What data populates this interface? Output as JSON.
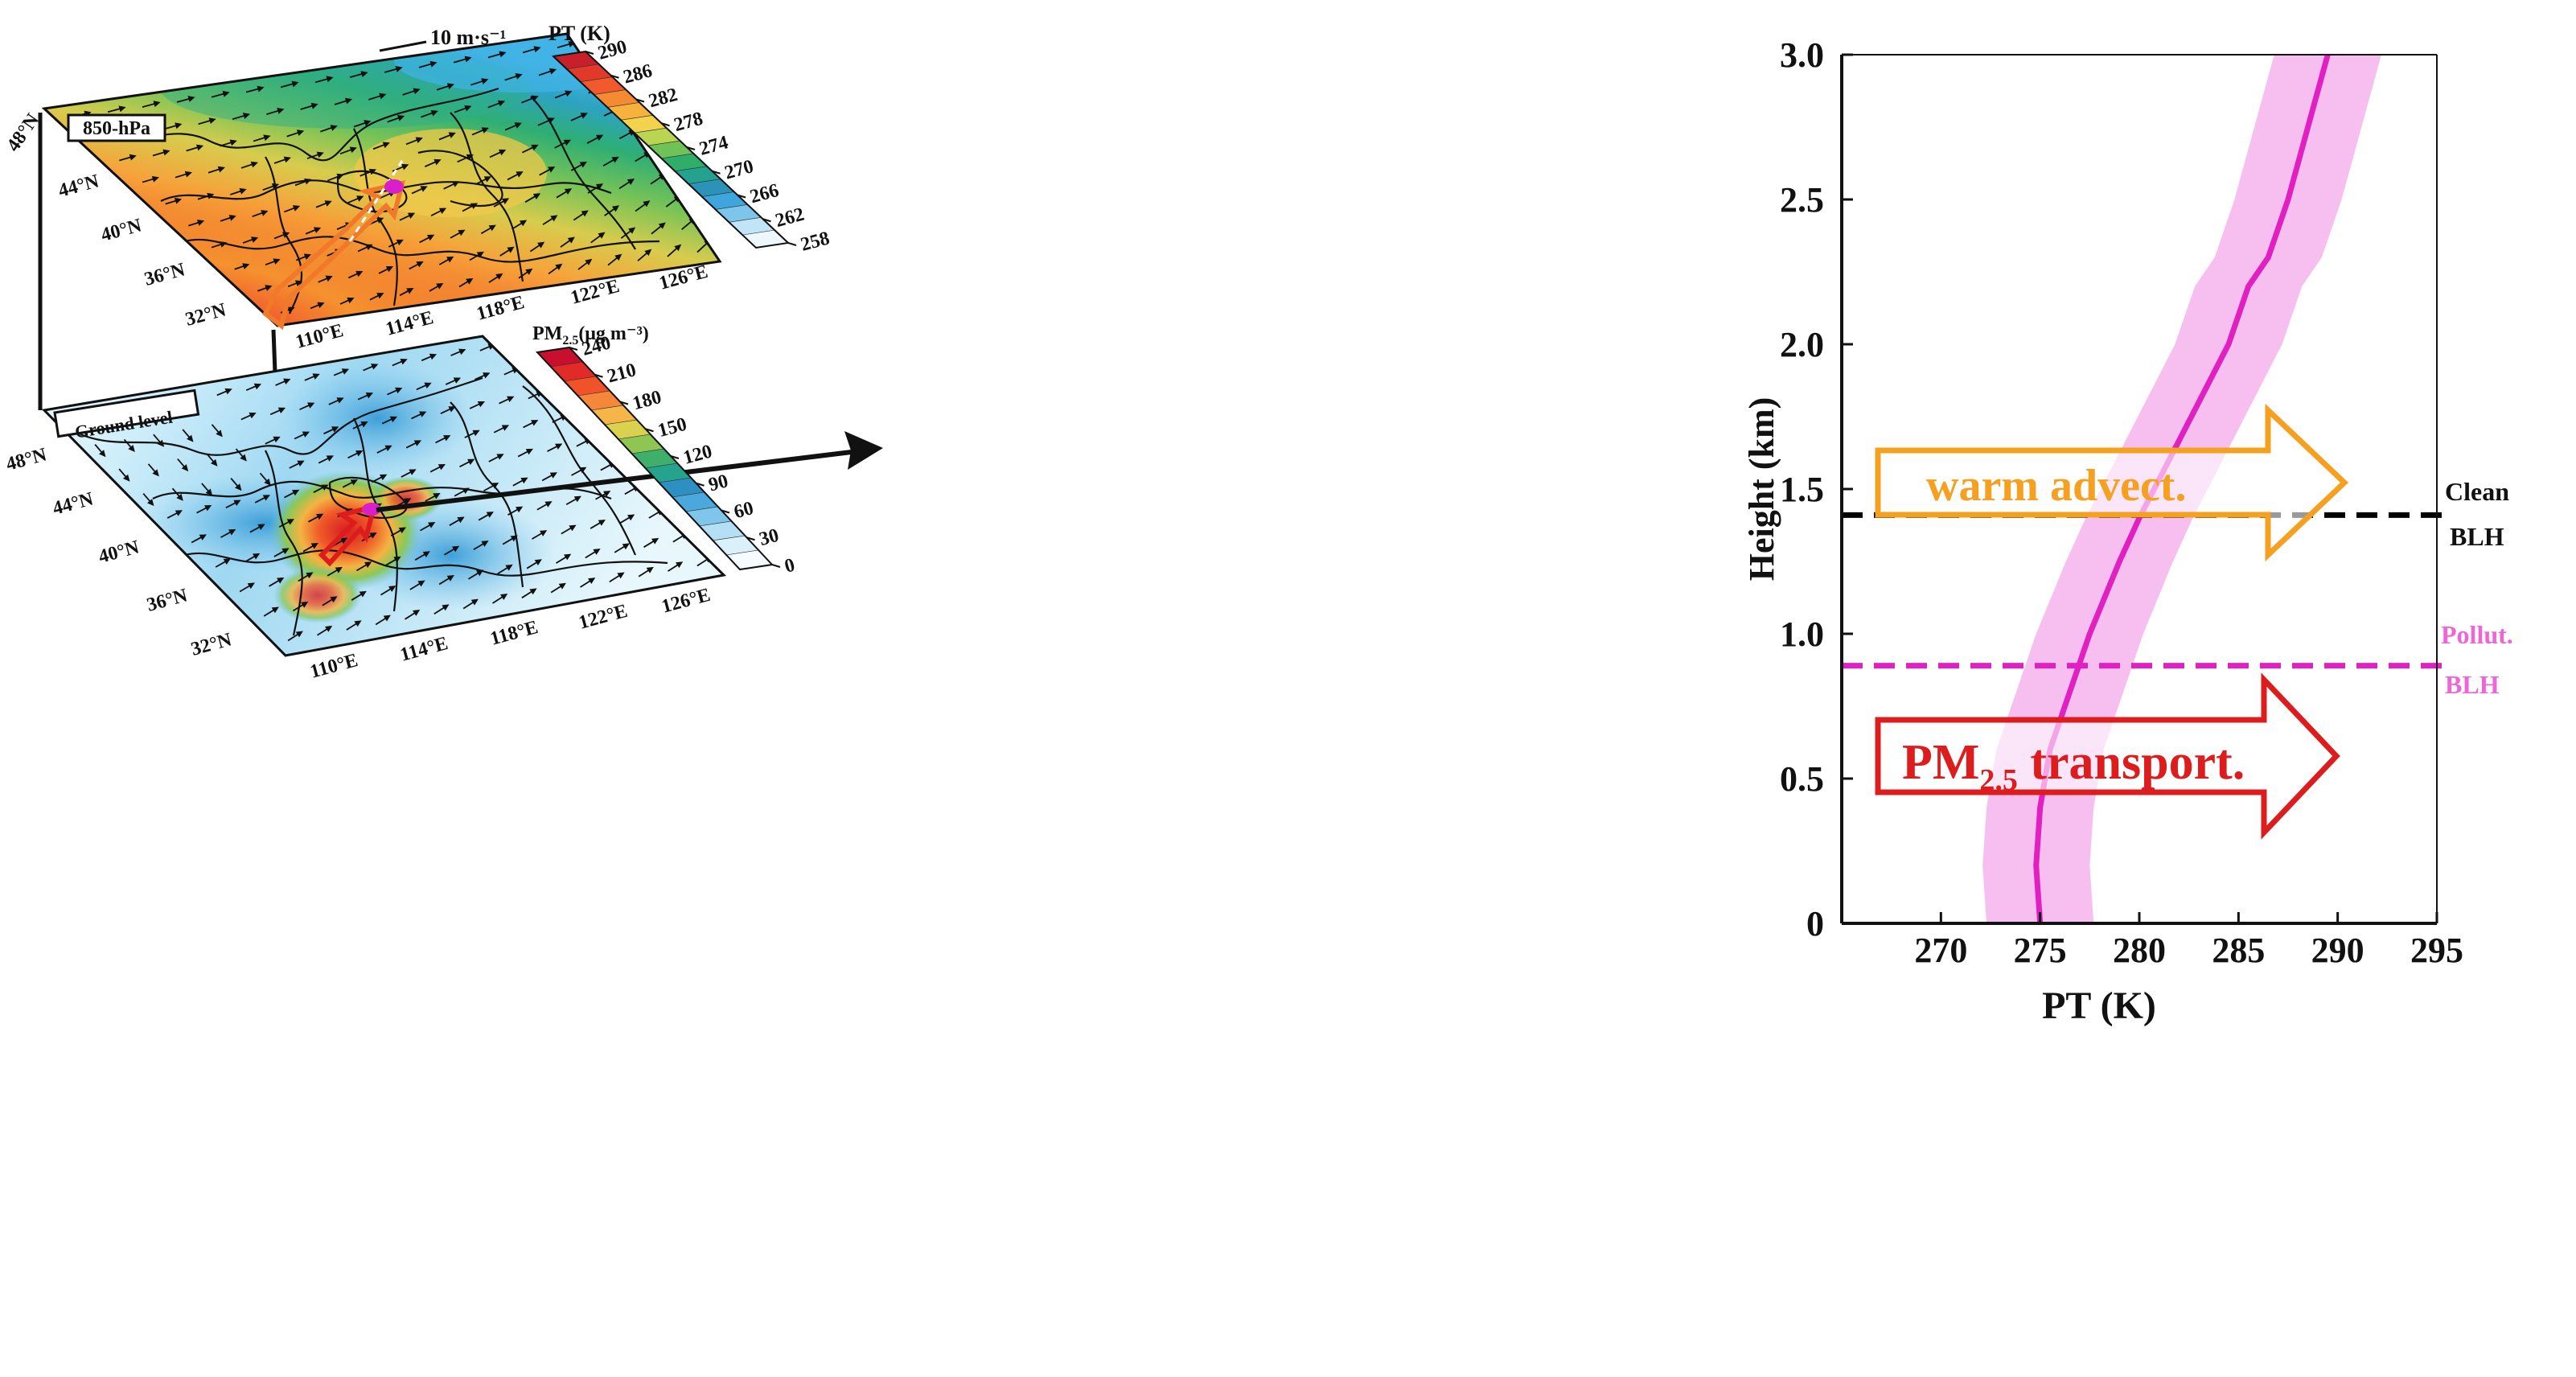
{
  "upper_map": {
    "level_label": "850-hPa",
    "lat_labels": [
      "48°N",
      "44°N",
      "40°N",
      "36°N",
      "32°N"
    ],
    "lon_labels": [
      "110°E",
      "114°E",
      "118°E",
      "122°E",
      "126°E"
    ],
    "wind_scale_label": "10 m·s⁻¹",
    "colorbar": {
      "title": "PT (K)",
      "ticks": [
        "290",
        "286",
        "282",
        "278",
        "274",
        "270",
        "266",
        "262",
        "258"
      ],
      "colors": [
        "#c8202a",
        "#e23a2a",
        "#f05a2c",
        "#f48a32",
        "#f7b23e",
        "#f3d24e",
        "#b9d551",
        "#6fc255",
        "#2fae6a",
        "#25a28f",
        "#2a93b7",
        "#3ea6dd",
        "#7cc6ec",
        "#bfe5f6",
        "#eef8fc"
      ]
    }
  },
  "lower_map": {
    "level_label": "Ground level",
    "lat_labels": [
      "48°N",
      "44°N",
      "40°N",
      "36°N",
      "32°N"
    ],
    "lon_labels": [
      "110°E",
      "114°E",
      "118°E",
      "122°E",
      "126°E"
    ],
    "colorbar": {
      "title_main": "PM",
      "title_sub": "2.5",
      "title_unit": "(μg m⁻³)",
      "ticks": [
        "240",
        "210",
        "180",
        "150",
        "120",
        "90",
        "60",
        "30",
        "0"
      ],
      "colors": [
        "#c8102e",
        "#e22a26",
        "#f0522a",
        "#f5873a",
        "#f5b548",
        "#d9d14f",
        "#8fc653",
        "#3faf6c",
        "#25a38f",
        "#2e90c2",
        "#4aa8dc",
        "#80c5ec",
        "#b5dff4",
        "#daf0fa",
        "#f5fbfe"
      ]
    }
  },
  "profile_chart": {
    "xlabel": "PT (K)",
    "ylabel": "Height (km)",
    "x_ticks": [
      270,
      275,
      280,
      285,
      290,
      295
    ],
    "y_ticks": [
      0,
      0.5,
      1.0,
      1.5,
      2.0,
      2.5,
      3.0
    ],
    "y_tick_labels": [
      "0",
      "0.5",
      "1.0",
      "1.5",
      "2.0",
      "2.5",
      "3.0"
    ],
    "clean_blh_line1": "Clean",
    "clean_blh_line2": "BLH",
    "pollut_blh_line1": "Pollut.",
    "pollut_blh_line2": "BLH",
    "warm_arrow_text": "warm advect.",
    "pm_arrow_main": "PM",
    "pm_arrow_sub": "2.5",
    "pm_arrow_tail": " transport."
  },
  "chart_data": {
    "type": "line",
    "xlabel": "PT (K)",
    "ylabel": "Height (km)",
    "xlim": [
      265,
      295
    ],
    "ylim": [
      0,
      3.0
    ],
    "series": [
      {
        "values_x": [
          275.0,
          274.8,
          275.0,
          275.5,
          276.5,
          277.5,
          279.0,
          280.0,
          281.5,
          283.0,
          284.5,
          285.5,
          286.5,
          287.5,
          288.5,
          289.5
        ],
        "values_y": [
          0.0,
          0.2,
          0.4,
          0.6,
          0.8,
          1.0,
          1.25,
          1.4,
          1.6,
          1.8,
          2.0,
          2.2,
          2.3,
          2.5,
          2.75,
          3.0
        ],
        "band_width_k": 2.7
      }
    ],
    "hlines": [
      {
        "y": 1.41,
        "style": "dashed",
        "color": "#000000"
      },
      {
        "y": 0.89,
        "style": "dashed",
        "color": "#e020c0"
      }
    ]
  },
  "colors": {
    "profile_line": "#e020c0",
    "profile_band": "#f4b4ec",
    "pollut_text": "#ee66d6",
    "warm_arrow": "#f5a020",
    "pm_arrow": "#dd1d1d",
    "site_marker": "#d81fc9"
  }
}
